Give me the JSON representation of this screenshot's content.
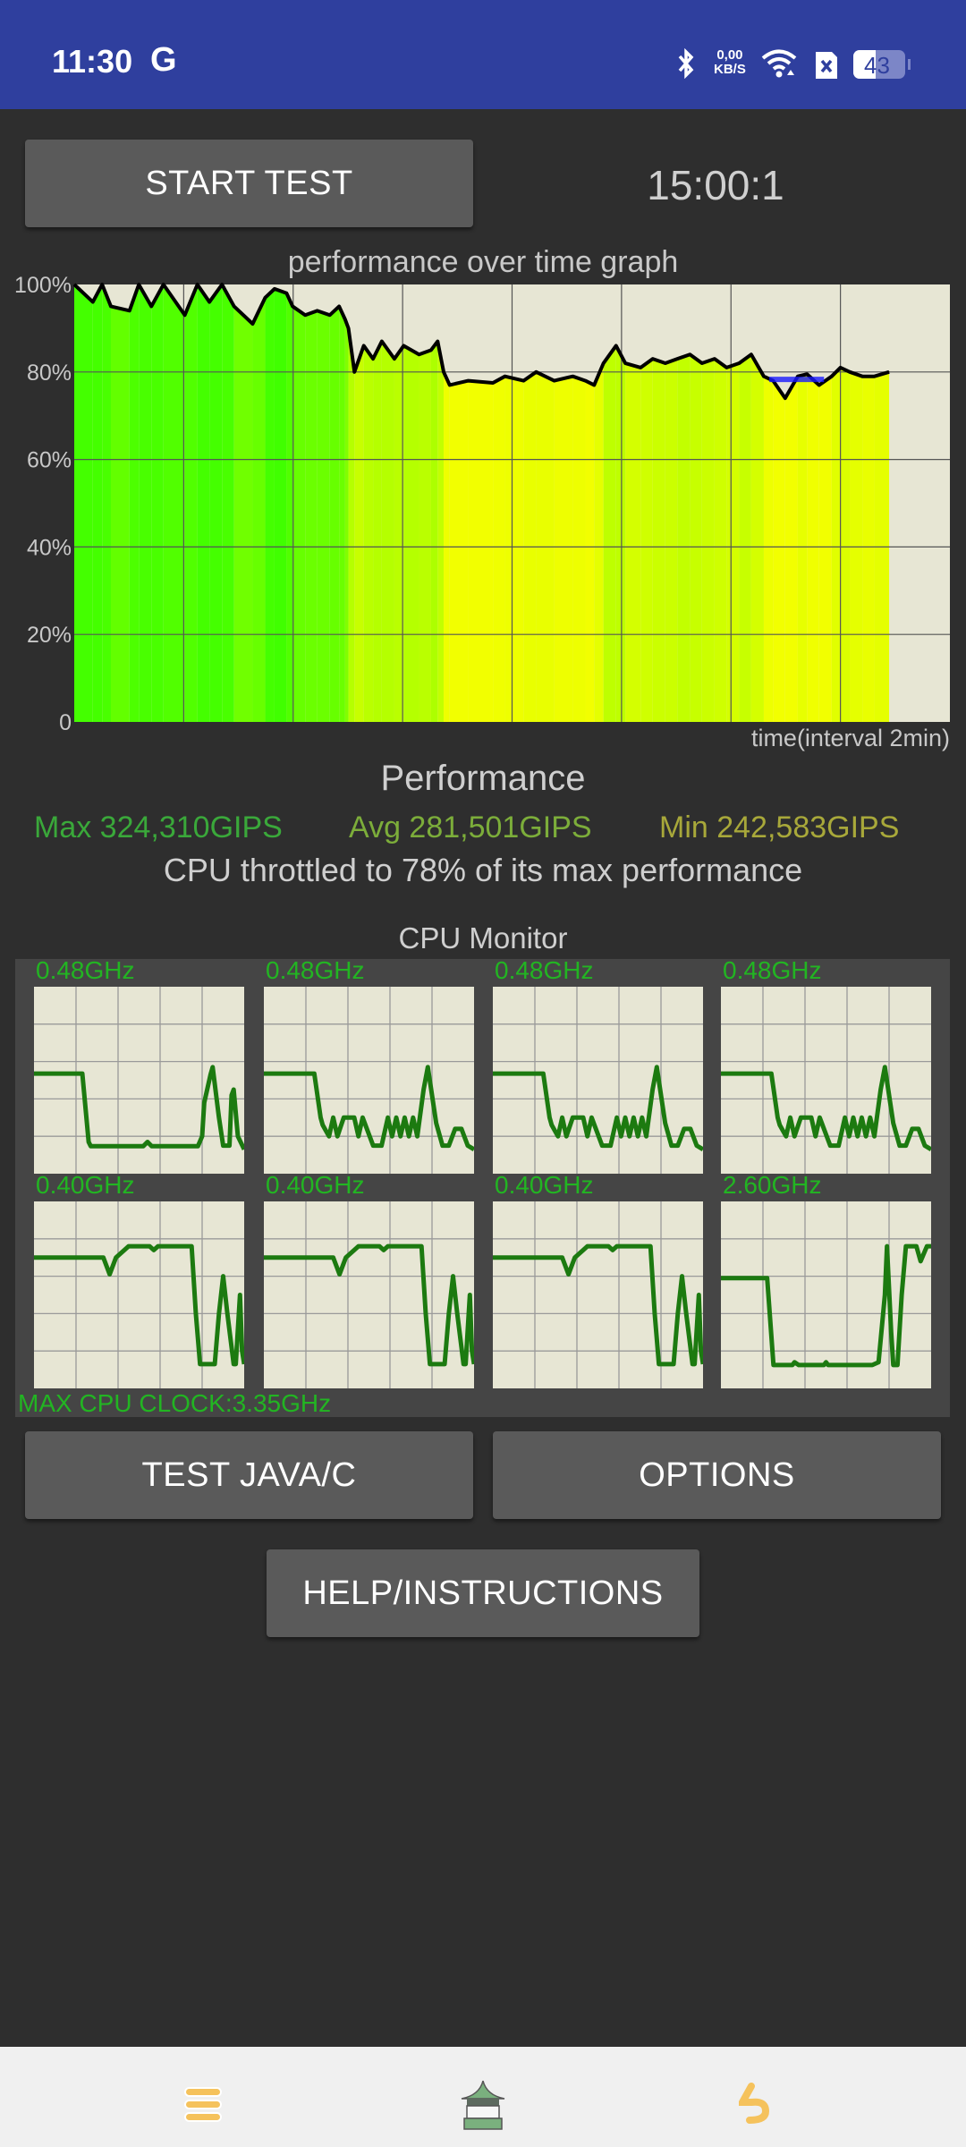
{
  "status_bar": {
    "time": "11:30",
    "carrier_icon": "G",
    "net_speed_value": "0,00",
    "net_speed_unit": "KB/S",
    "battery": "43",
    "icons": [
      "bluetooth-icon",
      "wifi-icon",
      "sim-x-icon",
      "battery-icon"
    ],
    "background": "#2f3f9e"
  },
  "controls": {
    "start_test_label": "START TEST",
    "timer": "15:00:1",
    "test_java_c_label": "TEST JAVA/C",
    "options_label": "OPTIONS",
    "help_label": "HELP/INSTRUCTIONS"
  },
  "chart_data": [
    {
      "type": "area",
      "title": "performance over time graph",
      "xlabel": "time(interval 2min)",
      "ylabel": "",
      "y_tick_labels": [
        "100%",
        "80%",
        "60%",
        "40%",
        "20%",
        "0"
      ],
      "ylim": [
        0,
        100
      ],
      "xlim": [
        0,
        16
      ],
      "x_grid_interval": 2,
      "grid": true,
      "colors": {
        "high": "#33ff00",
        "low": "#f2ff00",
        "line": "#000000",
        "plot_bg": "#e7e6d4",
        "marker": "#1a1aff"
      },
      "x": [
        0,
        0.34,
        0.51,
        0.67,
        1.01,
        1.18,
        1.41,
        1.63,
        2.02,
        2.25,
        2.47,
        2.7,
        2.92,
        3.26,
        3.49,
        3.66,
        3.88,
        3.99,
        4.22,
        4.44,
        4.67,
        4.84,
        4.95,
        5.01,
        5.12,
        5.29,
        5.46,
        5.62,
        5.85,
        6.02,
        6.3,
        6.52,
        6.64,
        6.75,
        6.86,
        7.2,
        7.65,
        7.87,
        8.21,
        8.44,
        8.77,
        9.11,
        9.34,
        9.5,
        9.67,
        9.9,
        10.07,
        10.35,
        10.57,
        10.8,
        11.02,
        11.25,
        11.47,
        11.7,
        11.92,
        12.15,
        12.37,
        12.6,
        12.77,
        12.99,
        13.22,
        13.39,
        13.61,
        13.84,
        14.0,
        14.17,
        14.4,
        14.62,
        14.89
      ],
      "values": [
        100,
        96,
        100,
        95,
        94,
        100,
        95,
        100,
        93,
        100,
        96,
        100,
        95,
        91,
        97,
        99,
        98,
        95,
        93,
        94,
        93,
        95,
        92,
        90,
        80,
        86,
        83,
        87,
        83,
        86,
        84,
        85,
        87,
        80,
        77,
        78,
        77.5,
        79,
        78,
        80,
        78,
        79,
        78,
        77,
        82,
        86,
        82,
        81,
        83,
        82,
        83,
        84,
        82,
        83,
        81,
        82,
        84,
        79,
        78,
        74,
        79,
        79.5,
        77,
        79,
        81,
        80,
        79,
        79,
        80
      ],
      "marker": {
        "x_start": 12.7,
        "x_end": 13.7,
        "value": 78.3
      }
    },
    {
      "type": "line",
      "title": "CPU Monitor",
      "footer": "MAX CPU CLOCK:3.35GHz",
      "grid": true,
      "line_color": "#1c7a10",
      "cores": [
        {
          "label": "0.48GHz",
          "points": [
            [
              0,
              0.535
            ],
            [
              0.23,
              0.535
            ],
            [
              0.26,
              0.17
            ],
            [
              0.27,
              0.147
            ],
            [
              0.52,
              0.147
            ],
            [
              0.54,
              0.17
            ],
            [
              0.56,
              0.147
            ],
            [
              0.78,
              0.147
            ],
            [
              0.8,
              0.2
            ],
            [
              0.81,
              0.38
            ],
            [
              0.84,
              0.53
            ],
            [
              0.85,
              0.57
            ],
            [
              0.88,
              0.3
            ],
            [
              0.9,
              0.15
            ],
            [
              0.93,
              0.15
            ],
            [
              0.94,
              0.42
            ],
            [
              0.95,
              0.45
            ],
            [
              0.97,
              0.2
            ],
            [
              1,
              0.13
            ]
          ]
        },
        {
          "label": "0.48GHz",
          "points": [
            [
              0,
              0.535
            ],
            [
              0.24,
              0.535
            ],
            [
              0.27,
              0.3
            ],
            [
              0.28,
              0.26
            ],
            [
              0.31,
              0.2
            ],
            [
              0.33,
              0.3
            ],
            [
              0.35,
              0.2
            ],
            [
              0.38,
              0.3
            ],
            [
              0.43,
              0.3
            ],
            [
              0.45,
              0.2
            ],
            [
              0.47,
              0.3
            ],
            [
              0.52,
              0.15
            ],
            [
              0.56,
              0.15
            ],
            [
              0.59,
              0.3
            ],
            [
              0.61,
              0.2
            ],
            [
              0.63,
              0.3
            ],
            [
              0.65,
              0.2
            ],
            [
              0.67,
              0.3
            ],
            [
              0.69,
              0.2
            ],
            [
              0.71,
              0.3
            ],
            [
              0.73,
              0.2
            ],
            [
              0.76,
              0.45
            ],
            [
              0.78,
              0.57
            ],
            [
              0.82,
              0.27
            ],
            [
              0.85,
              0.15
            ],
            [
              0.88,
              0.15
            ],
            [
              0.91,
              0.24
            ],
            [
              0.94,
              0.24
            ],
            [
              0.97,
              0.15
            ],
            [
              1,
              0.13
            ]
          ]
        },
        {
          "label": "0.48GHz",
          "points": [
            [
              0,
              0.535
            ],
            [
              0.24,
              0.535
            ],
            [
              0.27,
              0.3
            ],
            [
              0.28,
              0.26
            ],
            [
              0.31,
              0.2
            ],
            [
              0.33,
              0.3
            ],
            [
              0.35,
              0.2
            ],
            [
              0.38,
              0.3
            ],
            [
              0.43,
              0.3
            ],
            [
              0.45,
              0.2
            ],
            [
              0.47,
              0.3
            ],
            [
              0.52,
              0.15
            ],
            [
              0.56,
              0.15
            ],
            [
              0.59,
              0.3
            ],
            [
              0.61,
              0.2
            ],
            [
              0.63,
              0.3
            ],
            [
              0.65,
              0.2
            ],
            [
              0.67,
              0.3
            ],
            [
              0.69,
              0.2
            ],
            [
              0.71,
              0.3
            ],
            [
              0.73,
              0.2
            ],
            [
              0.76,
              0.45
            ],
            [
              0.78,
              0.57
            ],
            [
              0.82,
              0.27
            ],
            [
              0.85,
              0.15
            ],
            [
              0.88,
              0.15
            ],
            [
              0.91,
              0.24
            ],
            [
              0.94,
              0.24
            ],
            [
              0.97,
              0.15
            ],
            [
              1,
              0.13
            ]
          ]
        },
        {
          "label": "0.48GHz",
          "points": [
            [
              0,
              0.535
            ],
            [
              0.24,
              0.535
            ],
            [
              0.27,
              0.3
            ],
            [
              0.28,
              0.26
            ],
            [
              0.31,
              0.2
            ],
            [
              0.33,
              0.3
            ],
            [
              0.35,
              0.2
            ],
            [
              0.38,
              0.3
            ],
            [
              0.43,
              0.3
            ],
            [
              0.45,
              0.2
            ],
            [
              0.47,
              0.3
            ],
            [
              0.52,
              0.15
            ],
            [
              0.56,
              0.15
            ],
            [
              0.59,
              0.3
            ],
            [
              0.61,
              0.2
            ],
            [
              0.63,
              0.3
            ],
            [
              0.65,
              0.2
            ],
            [
              0.67,
              0.3
            ],
            [
              0.69,
              0.2
            ],
            [
              0.71,
              0.3
            ],
            [
              0.73,
              0.2
            ],
            [
              0.76,
              0.45
            ],
            [
              0.78,
              0.57
            ],
            [
              0.82,
              0.27
            ],
            [
              0.85,
              0.15
            ],
            [
              0.88,
              0.15
            ],
            [
              0.91,
              0.24
            ],
            [
              0.94,
              0.24
            ],
            [
              0.97,
              0.15
            ],
            [
              1,
              0.13
            ]
          ]
        },
        {
          "label": "0.40GHz",
          "points": [
            [
              0,
              0.7
            ],
            [
              0.33,
              0.7
            ],
            [
              0.36,
              0.61
            ],
            [
              0.39,
              0.7
            ],
            [
              0.43,
              0.74
            ],
            [
              0.45,
              0.76
            ],
            [
              0.55,
              0.76
            ],
            [
              0.57,
              0.74
            ],
            [
              0.59,
              0.76
            ],
            [
              0.75,
              0.76
            ],
            [
              0.77,
              0.4
            ],
            [
              0.79,
              0.13
            ],
            [
              0.86,
              0.13
            ],
            [
              0.88,
              0.4
            ],
            [
              0.9,
              0.6
            ],
            [
              0.92,
              0.4
            ],
            [
              0.95,
              0.13
            ],
            [
              0.96,
              0.13
            ],
            [
              0.98,
              0.5
            ],
            [
              0.99,
              0.2
            ],
            [
              1,
              0.13
            ]
          ]
        },
        {
          "label": "0.40GHz",
          "points": [
            [
              0,
              0.7
            ],
            [
              0.33,
              0.7
            ],
            [
              0.36,
              0.61
            ],
            [
              0.39,
              0.7
            ],
            [
              0.43,
              0.74
            ],
            [
              0.45,
              0.76
            ],
            [
              0.55,
              0.76
            ],
            [
              0.57,
              0.74
            ],
            [
              0.59,
              0.76
            ],
            [
              0.75,
              0.76
            ],
            [
              0.77,
              0.4
            ],
            [
              0.79,
              0.13
            ],
            [
              0.86,
              0.13
            ],
            [
              0.88,
              0.4
            ],
            [
              0.9,
              0.6
            ],
            [
              0.92,
              0.4
            ],
            [
              0.95,
              0.13
            ],
            [
              0.96,
              0.13
            ],
            [
              0.98,
              0.5
            ],
            [
              0.99,
              0.2
            ],
            [
              1,
              0.13
            ]
          ]
        },
        {
          "label": "0.40GHz",
          "points": [
            [
              0,
              0.7
            ],
            [
              0.33,
              0.7
            ],
            [
              0.36,
              0.61
            ],
            [
              0.39,
              0.7
            ],
            [
              0.43,
              0.74
            ],
            [
              0.45,
              0.76
            ],
            [
              0.55,
              0.76
            ],
            [
              0.57,
              0.74
            ],
            [
              0.59,
              0.76
            ],
            [
              0.75,
              0.76
            ],
            [
              0.77,
              0.4
            ],
            [
              0.79,
              0.13
            ],
            [
              0.86,
              0.13
            ],
            [
              0.88,
              0.4
            ],
            [
              0.9,
              0.6
            ],
            [
              0.92,
              0.4
            ],
            [
              0.95,
              0.13
            ],
            [
              0.96,
              0.13
            ],
            [
              0.98,
              0.5
            ],
            [
              0.99,
              0.2
            ],
            [
              1,
              0.13
            ]
          ]
        },
        {
          "label": "2.60GHz",
          "points": [
            [
              0,
              0.59
            ],
            [
              0.22,
              0.59
            ],
            [
              0.25,
              0.125
            ],
            [
              0.34,
              0.125
            ],
            [
              0.35,
              0.14
            ],
            [
              0.37,
              0.125
            ],
            [
              0.49,
              0.125
            ],
            [
              0.5,
              0.14
            ],
            [
              0.51,
              0.125
            ],
            [
              0.72,
              0.125
            ],
            [
              0.75,
              0.14
            ],
            [
              0.78,
              0.5
            ],
            [
              0.79,
              0.76
            ],
            [
              0.81,
              0.3
            ],
            [
              0.82,
              0.125
            ],
            [
              0.84,
              0.125
            ],
            [
              0.86,
              0.5
            ],
            [
              0.88,
              0.76
            ],
            [
              0.93,
              0.76
            ],
            [
              0.95,
              0.68
            ],
            [
              0.98,
              0.76
            ],
            [
              1,
              0.76
            ]
          ]
        }
      ]
    }
  ],
  "performance": {
    "heading": "Performance",
    "max": "Max 324,310GIPS",
    "avg": "Avg 281,501GIPS",
    "min": "Min 242,583GIPS",
    "throttle_text": "CPU throttled to 78% of its max performance",
    "colors": {
      "max": "#3aa83a",
      "avg": "#7cad3a",
      "min": "#a8a83a"
    }
  },
  "nav_bar": {
    "icons": [
      "menu-icon",
      "home-icon",
      "back-icon"
    ],
    "icon_color": "#f5c25c"
  }
}
